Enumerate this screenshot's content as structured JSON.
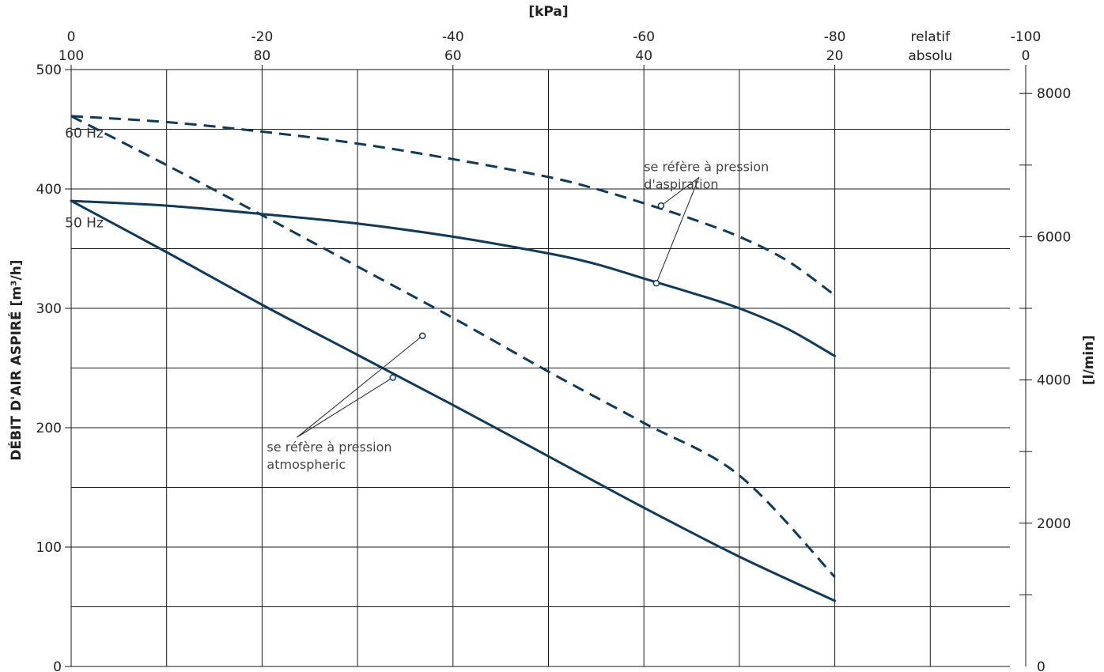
{
  "chart_data": {
    "type": "line",
    "title": "",
    "x_axis_title": "[kPa]",
    "y_axis_title_left": "DÉBIT D'AIR ASPIRÉ",
    "y_axis_unit_left": "[m³/h]",
    "y_axis_title_right": "[l/min]",
    "x_ticks_relative": [
      "0",
      "-20",
      "-40",
      "-60",
      "-80",
      "-100"
    ],
    "x_ticks_absolute": [
      "100",
      "80",
      "60",
      "40",
      "20",
      "0"
    ],
    "x_scale_label_relative": "relatif",
    "x_scale_label_absolute": "absolu",
    "xlim": [
      0,
      -100
    ],
    "ylim_left": [
      0,
      500
    ],
    "ylim_right": [
      0,
      8333.33
    ],
    "y_ticks_left": [
      "0",
      "100",
      "200",
      "300",
      "400",
      "500"
    ],
    "y_ticks_right": [
      "0",
      "2000",
      "4000",
      "6000",
      "8000"
    ],
    "grid": true,
    "series": [
      {
        "name": "60 Hz",
        "basis": "se réfère à pression d'aspiration",
        "line_style": "dashed",
        "x": [
          0,
          -10,
          -20,
          -30,
          -40,
          -50,
          -55,
          -60,
          -65,
          -70,
          -75,
          -80
        ],
        "y": [
          461,
          456,
          448,
          438,
          425,
          410,
          400,
          388,
          375,
          360,
          340,
          311
        ]
      },
      {
        "name": "60 Hz",
        "basis": "se réfère à pression atmospheric",
        "line_style": "dashed",
        "x": [
          0,
          -10,
          -20,
          -30,
          -40,
          -50,
          -60,
          -70,
          -80
        ],
        "y": [
          461,
          420,
          378,
          335,
          292,
          247,
          204,
          160,
          75
        ]
      },
      {
        "name": "50 Hz",
        "basis": "se réfère à pression d'aspiration",
        "line_style": "solid",
        "x": [
          0,
          -10,
          -20,
          -30,
          -40,
          -50,
          -55,
          -60,
          -65,
          -70,
          -75,
          -80
        ],
        "y": [
          390,
          386,
          379,
          371,
          360,
          346,
          337,
          325,
          313,
          300,
          283,
          260
        ]
      },
      {
        "name": "50 Hz",
        "basis": "se réfère à pression atmospheric",
        "line_style": "solid",
        "x": [
          0,
          -10,
          -20,
          -30,
          -40,
          -50,
          -60,
          -70,
          -80
        ],
        "y": [
          390,
          347,
          303,
          261,
          219,
          176,
          133,
          92,
          55
        ]
      }
    ],
    "series_labels": [
      {
        "text": "60 Hz",
        "x": -2,
        "y": 447
      },
      {
        "text": "50 Hz",
        "x": -2,
        "y": 372
      }
    ],
    "annotations": [
      {
        "lines": [
          "se réfère à pression",
          "d'aspiration"
        ],
        "x": -60,
        "y": 415,
        "targets": [
          {
            "x": -61.8,
            "y": 386
          },
          {
            "x": -61.3,
            "y": 321
          }
        ]
      },
      {
        "lines": [
          "se réfère à pression",
          "atmospheric"
        ],
        "x": -20.5,
        "y": 180,
        "targets": [
          {
            "x": -36.8,
            "y": 277
          },
          {
            "x": -33.7,
            "y": 242
          }
        ]
      }
    ],
    "colors": {
      "curve": "#0e3a5c",
      "grid": "#1a1a1a",
      "text": "#222222",
      "note": "#444444"
    }
  }
}
